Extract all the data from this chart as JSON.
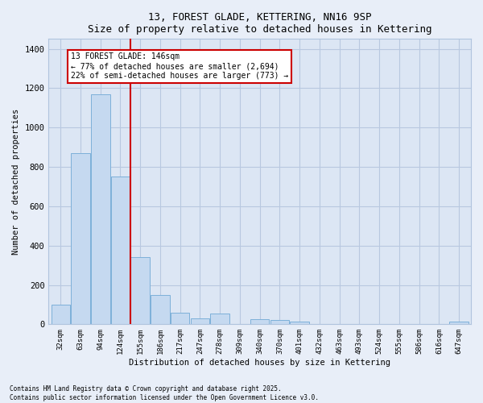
{
  "title1": "13, FOREST GLADE, KETTERING, NN16 9SP",
  "title2": "Size of property relative to detached houses in Kettering",
  "xlabel": "Distribution of detached houses by size in Kettering",
  "ylabel": "Number of detached properties",
  "categories": [
    "32sqm",
    "63sqm",
    "94sqm",
    "124sqm",
    "155sqm",
    "186sqm",
    "217sqm",
    "247sqm",
    "278sqm",
    "309sqm",
    "340sqm",
    "370sqm",
    "401sqm",
    "432sqm",
    "463sqm",
    "493sqm",
    "524sqm",
    "555sqm",
    "586sqm",
    "616sqm",
    "647sqm"
  ],
  "values": [
    100,
    870,
    1170,
    750,
    340,
    150,
    60,
    30,
    55,
    0,
    25,
    20,
    15,
    0,
    0,
    0,
    0,
    0,
    0,
    0,
    15
  ],
  "bar_color": "#c5d9f0",
  "bar_edge_color": "#7db0d9",
  "vline_color": "#cc0000",
  "annotation_title": "13 FOREST GLADE: 146sqm",
  "annotation_line1": "← 77% of detached houses are smaller (2,694)",
  "annotation_line2": "22% of semi-detached houses are larger (773) →",
  "annotation_box_color": "#cc0000",
  "ylim": [
    0,
    1450
  ],
  "yticks": [
    0,
    200,
    400,
    600,
    800,
    1000,
    1200,
    1400
  ],
  "footnote1": "Contains HM Land Registry data © Crown copyright and database right 2025.",
  "footnote2": "Contains public sector information licensed under the Open Government Licence v3.0.",
  "bg_color": "#e8eef8",
  "plot_bg_color": "#dce6f4"
}
